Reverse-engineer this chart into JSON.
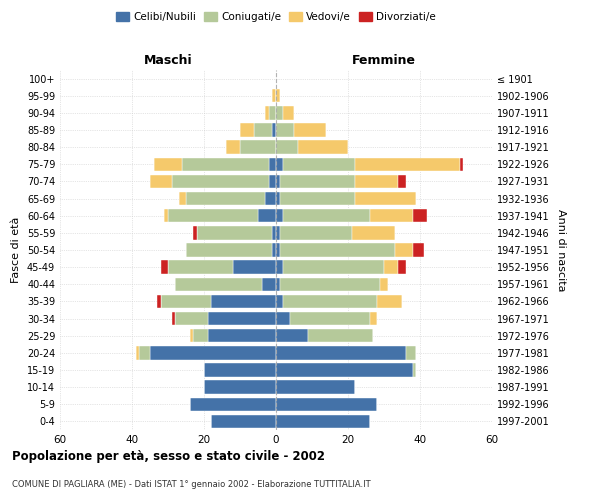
{
  "age_groups": [
    "0-4",
    "5-9",
    "10-14",
    "15-19",
    "20-24",
    "25-29",
    "30-34",
    "35-39",
    "40-44",
    "45-49",
    "50-54",
    "55-59",
    "60-64",
    "65-69",
    "70-74",
    "75-79",
    "80-84",
    "85-89",
    "90-94",
    "95-99",
    "100+"
  ],
  "birth_years": [
    "1997-2001",
    "1992-1996",
    "1987-1991",
    "1982-1986",
    "1977-1981",
    "1972-1976",
    "1967-1971",
    "1962-1966",
    "1957-1961",
    "1952-1956",
    "1947-1951",
    "1942-1946",
    "1937-1941",
    "1932-1936",
    "1927-1931",
    "1922-1926",
    "1917-1921",
    "1912-1916",
    "1907-1911",
    "1902-1906",
    "≤ 1901"
  ],
  "male": {
    "celibe": [
      18,
      24,
      20,
      20,
      35,
      19,
      19,
      18,
      4,
      12,
      1,
      1,
      5,
      3,
      2,
      2,
      0,
      1,
      0,
      0,
      0
    ],
    "coniugato": [
      0,
      0,
      0,
      0,
      3,
      4,
      9,
      14,
      24,
      18,
      24,
      21,
      25,
      22,
      27,
      24,
      10,
      5,
      2,
      0,
      0
    ],
    "vedovo": [
      0,
      0,
      0,
      0,
      1,
      1,
      0,
      0,
      0,
      0,
      0,
      0,
      1,
      2,
      6,
      8,
      4,
      4,
      1,
      1,
      0
    ],
    "divorziato": [
      0,
      0,
      0,
      0,
      0,
      0,
      1,
      1,
      0,
      2,
      0,
      1,
      0,
      0,
      0,
      0,
      0,
      0,
      0,
      0,
      0
    ]
  },
  "female": {
    "nubile": [
      26,
      28,
      22,
      38,
      36,
      9,
      4,
      2,
      1,
      2,
      1,
      1,
      2,
      1,
      1,
      2,
      0,
      0,
      0,
      0,
      0
    ],
    "coniugata": [
      0,
      0,
      0,
      1,
      3,
      18,
      22,
      26,
      28,
      28,
      32,
      20,
      24,
      21,
      21,
      20,
      6,
      5,
      2,
      0,
      0
    ],
    "vedova": [
      0,
      0,
      0,
      0,
      0,
      0,
      2,
      7,
      2,
      4,
      5,
      12,
      12,
      17,
      12,
      29,
      14,
      9,
      3,
      1,
      0
    ],
    "divorziata": [
      0,
      0,
      0,
      0,
      0,
      0,
      0,
      0,
      0,
      2,
      3,
      0,
      4,
      0,
      2,
      1,
      0,
      0,
      0,
      0,
      0
    ]
  },
  "colors": {
    "celibe": "#4472a8",
    "coniugato": "#b5c99a",
    "vedovo": "#f5c96b",
    "divorziato": "#cc2222"
  },
  "title": "Popolazione per età, sesso e stato civile - 2002",
  "subtitle": "COMUNE DI PAGLIARA (ME) - Dati ISTAT 1° gennaio 2002 - Elaborazione TUTTITALIA.IT",
  "xlabel_left": "Maschi",
  "xlabel_right": "Femmine",
  "ylabel": "Fasce di età",
  "ylabel_right": "Anni di nascita",
  "xlim": 60,
  "background_color": "#ffffff",
  "grid_color": "#cccccc"
}
